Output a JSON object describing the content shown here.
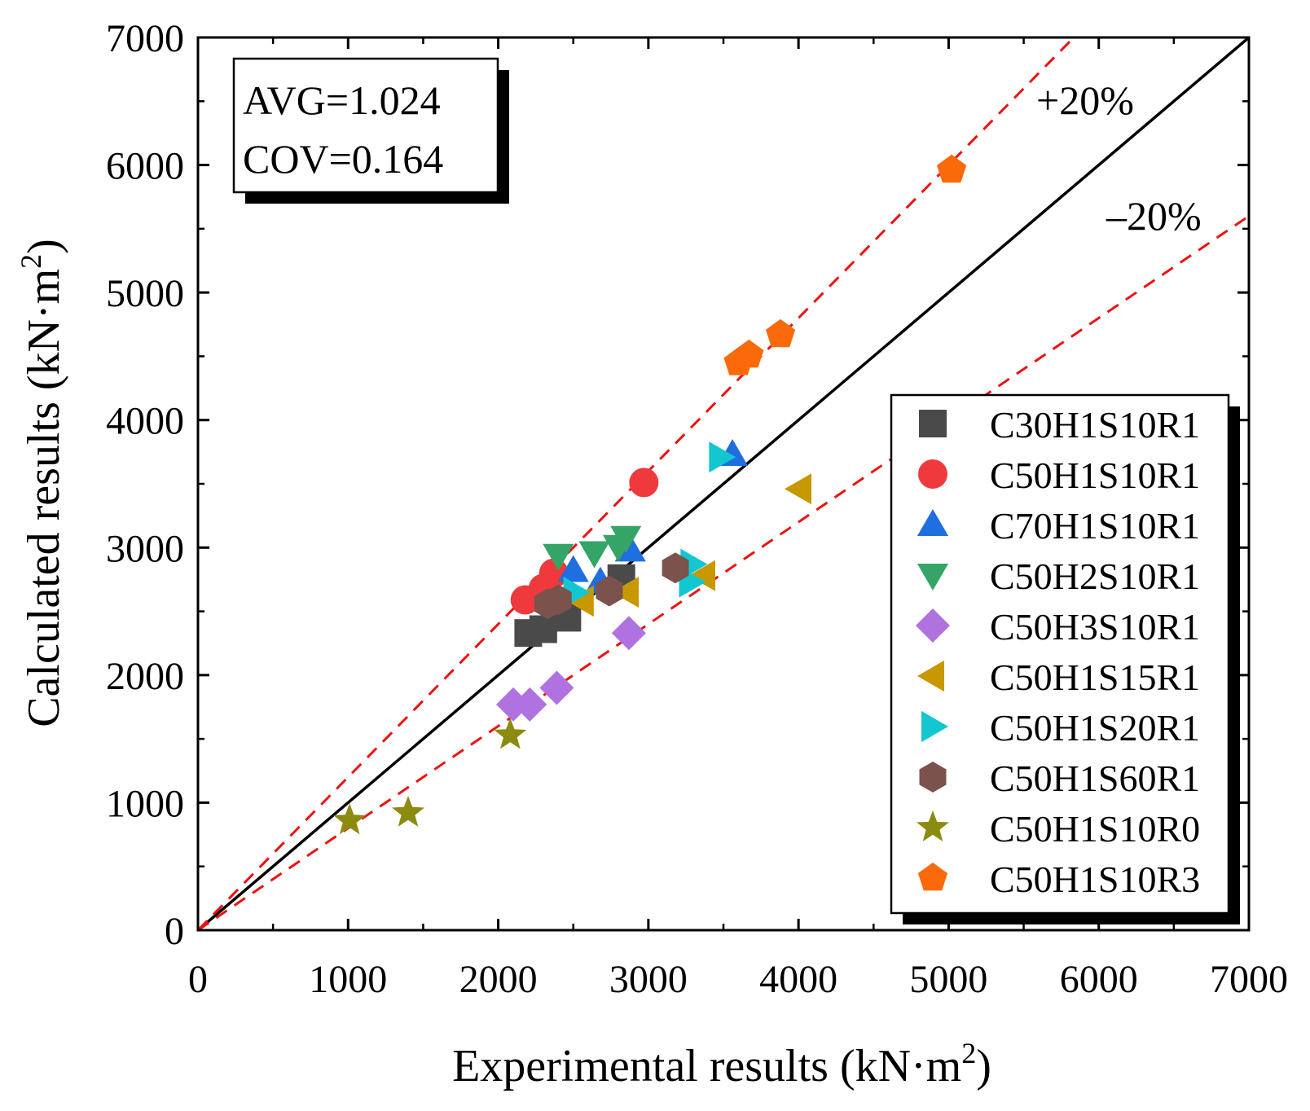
{
  "chart_data": {
    "type": "scatter",
    "title": "",
    "xlabel": "Experimental results (kN·m",
    "ylabel": "Calculated results (kN·m",
    "label_superscript": "2",
    "label_close": ")",
    "xlim": [
      0,
      7000
    ],
    "ylim": [
      0,
      7000
    ],
    "xticks": [
      "0",
      "1000",
      "2000",
      "3000",
      "4000",
      "5000",
      "6000",
      "7000"
    ],
    "yticks": [
      "0",
      "1000",
      "2000",
      "3000",
      "4000",
      "5000",
      "6000",
      "7000"
    ],
    "grid": false,
    "stats": {
      "avg": "AVG=1.024",
      "cov": "COV=0.164"
    },
    "reference_lines": [
      {
        "label": "",
        "slope": 1.0,
        "color": "#000000",
        "style": "solid"
      },
      {
        "label": "+20%",
        "slope": 1.2,
        "color": "#ee1111",
        "style": "dashed"
      },
      {
        "label": "–20%",
        "slope": 0.8,
        "color": "#ee1111",
        "style": "dashed"
      }
    ],
    "legend_position": "bottom-right",
    "series": [
      {
        "name": "C30H1S10R1",
        "marker": "square",
        "color": "#4a4a4a",
        "points": [
          [
            2200,
            2330
          ],
          [
            2300,
            2360
          ],
          [
            2460,
            2450
          ],
          [
            2820,
            2760
          ]
        ]
      },
      {
        "name": "C50H1S10R1",
        "marker": "circle",
        "color": "#f0393d",
        "points": [
          [
            2180,
            2590
          ],
          [
            2300,
            2680
          ],
          [
            2370,
            2800
          ],
          [
            2970,
            3510
          ]
        ]
      },
      {
        "name": "C70H1S10R1",
        "marker": "triangle-up",
        "color": "#1f6fe0",
        "points": [
          [
            2500,
            2820
          ],
          [
            2680,
            2730
          ],
          [
            2880,
            2980
          ],
          [
            3560,
            3730
          ]
        ]
      },
      {
        "name": "C50H2S10R1",
        "marker": "triangle-down",
        "color": "#34a566",
        "points": [
          [
            2400,
            2940
          ],
          [
            2640,
            2960
          ],
          [
            2800,
            3010
          ],
          [
            2850,
            3080
          ]
        ]
      },
      {
        "name": "C50H3S10R1",
        "marker": "diamond",
        "color": "#b072e0",
        "points": [
          [
            2100,
            1770
          ],
          [
            2210,
            1770
          ],
          [
            2390,
            1900
          ],
          [
            2870,
            2330
          ]
        ]
      },
      {
        "name": "C50H1S15R1",
        "marker": "triangle-left",
        "color": "#c89800",
        "points": [
          [
            2560,
            2580
          ],
          [
            2860,
            2650
          ],
          [
            3370,
            2780
          ],
          [
            4010,
            3460
          ]
        ]
      },
      {
        "name": "C50H1S20R1",
        "marker": "triangle-right",
        "color": "#12c7cf",
        "points": [
          [
            2510,
            2650
          ],
          [
            3280,
            2730
          ],
          [
            3290,
            2870
          ],
          [
            3480,
            3710
          ]
        ]
      },
      {
        "name": "C50H1S60R1",
        "marker": "hexagon",
        "color": "#7c524c",
        "points": [
          [
            2330,
            2560
          ],
          [
            2400,
            2590
          ],
          [
            2740,
            2660
          ],
          [
            3180,
            2840
          ]
        ]
      },
      {
        "name": "C50H1S10R0",
        "marker": "star",
        "color": "#8b8b10",
        "points": [
          [
            1010,
            860
          ],
          [
            1400,
            920
          ],
          [
            2080,
            1530
          ]
        ]
      },
      {
        "name": "C50H1S10R3",
        "marker": "pentagon",
        "color": "#fa6a0a",
        "points": [
          [
            3600,
            4450
          ],
          [
            3670,
            4510
          ],
          [
            3880,
            4670
          ],
          [
            5020,
            5960
          ]
        ]
      }
    ]
  }
}
